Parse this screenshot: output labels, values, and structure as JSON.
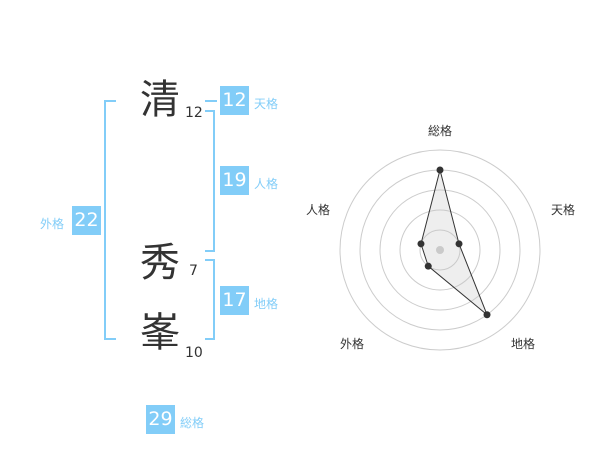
{
  "name": [
    {
      "char": "清",
      "strokes": "12"
    },
    {
      "char": "秀",
      "strokes": "7"
    },
    {
      "char": "峯",
      "strokes": "10"
    }
  ],
  "fortunes": {
    "tenkaku": {
      "value": "12",
      "label": "天格"
    },
    "jinkaku": {
      "value": "19",
      "label": "人格"
    },
    "chikaku": {
      "value": "17",
      "label": "地格"
    },
    "gaikaku": {
      "value": "22",
      "label": "外格"
    },
    "soukaku": {
      "value": "29",
      "label": "総格"
    }
  },
  "accent_color": "#82cdf8",
  "chart_data": {
    "type": "radar",
    "axes": [
      "総格",
      "天格",
      "地格",
      "外格",
      "人格"
    ],
    "values": [
      4,
      1,
      4,
      1,
      1
    ],
    "range": [
      0,
      5
    ],
    "rings": 5
  }
}
